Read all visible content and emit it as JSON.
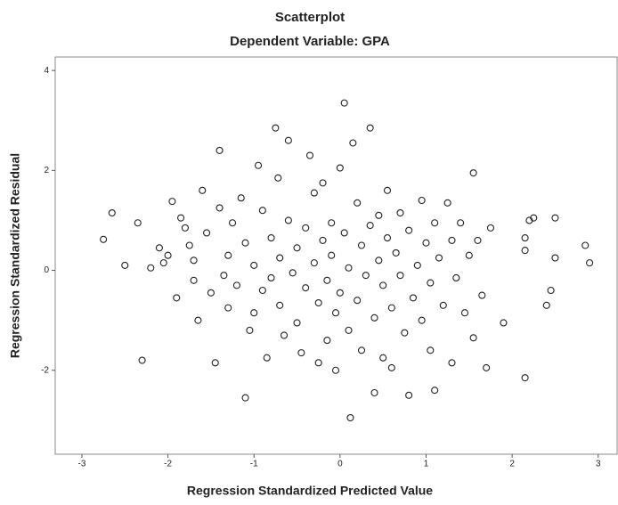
{
  "chart_data": {
    "type": "scatter",
    "title": "Scatterplot",
    "subtitle": "Dependent Variable: GPA",
    "x_label": "Regression Standardized Predicted Value",
    "y_label": "Regression Standardized Residual",
    "xlim": [
      -3.31,
      3.22
    ],
    "ylim": [
      -3.68,
      4.27
    ],
    "xticks": [
      -3,
      -2,
      -1,
      0,
      1,
      2,
      3
    ],
    "yticks": [
      -2,
      0,
      2,
      4
    ],
    "color": "#222222",
    "x": [
      -2.75,
      -2.65,
      -2.5,
      -2.35,
      -2.3,
      -2.2,
      -2.1,
      -2.05,
      -2.0,
      -1.95,
      -1.9,
      -1.85,
      -1.8,
      -1.75,
      -1.7,
      -1.7,
      -1.65,
      -1.6,
      -1.55,
      -1.5,
      -1.45,
      -1.4,
      -1.4,
      -1.35,
      -1.3,
      -1.3,
      -1.25,
      -1.2,
      -1.15,
      -1.1,
      -1.1,
      -1.05,
      -1.0,
      -1.0,
      -0.95,
      -0.9,
      -0.9,
      -0.85,
      -0.8,
      -0.8,
      -0.75,
      -0.72,
      -0.7,
      -0.7,
      -0.65,
      -0.6,
      -0.6,
      -0.55,
      -0.5,
      -0.5,
      -0.45,
      -0.4,
      -0.4,
      -0.35,
      -0.3,
      -0.3,
      -0.25,
      -0.25,
      -0.2,
      -0.2,
      -0.15,
      -0.15,
      -0.1,
      -0.1,
      -0.05,
      -0.05,
      0.0,
      0.0,
      0.05,
      0.05,
      0.1,
      0.1,
      0.12,
      0.15,
      0.2,
      0.2,
      0.25,
      0.25,
      0.3,
      0.35,
      0.35,
      0.4,
      0.4,
      0.45,
      0.45,
      0.5,
      0.5,
      0.55,
      0.55,
      0.6,
      0.6,
      0.65,
      0.7,
      0.7,
      0.75,
      0.8,
      0.8,
      0.85,
      0.9,
      0.95,
      0.95,
      1.0,
      1.05,
      1.05,
      1.1,
      1.1,
      1.15,
      1.2,
      1.25,
      1.3,
      1.3,
      1.35,
      1.4,
      1.45,
      1.5,
      1.55,
      1.55,
      1.6,
      1.65,
      1.7,
      1.75,
      1.9,
      2.15,
      2.15,
      2.15,
      2.2,
      2.25,
      2.4,
      2.45,
      2.5,
      2.5,
      2.85,
      2.9
    ],
    "values": [
      0.62,
      1.15,
      0.1,
      0.95,
      -1.8,
      0.05,
      0.45,
      0.15,
      0.3,
      1.38,
      -0.55,
      1.05,
      0.85,
      0.5,
      0.2,
      -0.2,
      -1.0,
      1.6,
      0.75,
      -0.45,
      -1.85,
      2.4,
      1.25,
      -0.1,
      0.3,
      -0.75,
      0.95,
      -0.3,
      1.45,
      -2.55,
      0.55,
      -1.2,
      0.1,
      -0.85,
      2.1,
      1.2,
      -0.4,
      -1.75,
      0.65,
      -0.15,
      2.85,
      1.85,
      0.25,
      -0.7,
      -1.3,
      2.6,
      1.0,
      -0.05,
      0.45,
      -1.05,
      -1.65,
      0.85,
      -0.35,
      2.3,
      1.55,
      0.15,
      -0.65,
      -1.85,
      0.6,
      1.75,
      -0.2,
      -1.4,
      0.95,
      0.3,
      -2.0,
      -0.85,
      2.05,
      -0.45,
      3.35,
      0.75,
      0.05,
      -1.2,
      -2.95,
      2.55,
      1.35,
      -0.6,
      0.5,
      -1.6,
      -0.1,
      2.85,
      0.9,
      -0.95,
      -2.45,
      1.1,
      0.2,
      -0.3,
      -1.75,
      0.65,
      1.6,
      -0.75,
      -1.95,
      0.35,
      1.15,
      -0.1,
      -1.25,
      0.8,
      -2.5,
      -0.55,
      0.1,
      1.4,
      -1.0,
      0.55,
      -0.25,
      -1.6,
      -2.4,
      0.95,
      0.25,
      -0.7,
      1.35,
      -1.85,
      0.6,
      -0.15,
      0.95,
      -0.85,
      0.3,
      1.95,
      -1.35,
      0.6,
      -0.5,
      -1.95,
      0.85,
      -1.05,
      -2.15,
      0.65,
      0.4,
      1.0,
      1.05,
      -0.7,
      -0.4,
      1.05,
      0.25,
      0.5,
      0.15
    ]
  }
}
